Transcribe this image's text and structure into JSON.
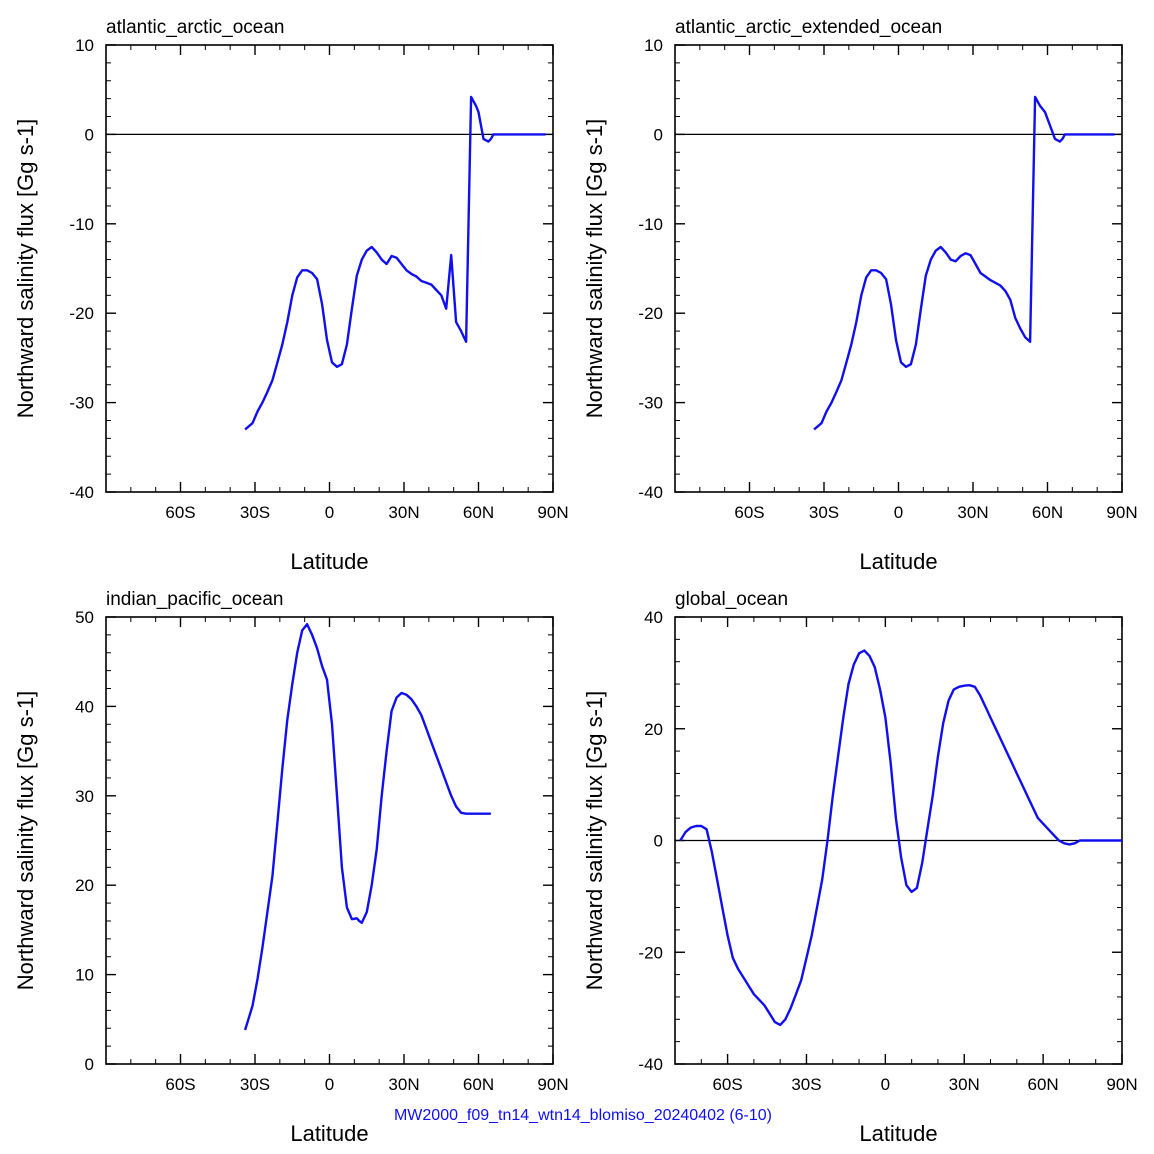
{
  "footer": "MW2000_f09_tn14_wtn14_blomiso_20240402 (6-10)",
  "colors": {
    "series": "#1010ee",
    "axes": "#000000"
  },
  "chart_data": [
    {
      "type": "line",
      "title": "atlantic_arctic_ocean",
      "xlabel": "Latitude",
      "ylabel": "Northward salinity flux [Gg s-1]",
      "xlim": [
        -90,
        90
      ],
      "ylim": [
        -40,
        10
      ],
      "x_ticks": [
        {
          "v": -60,
          "label": "60S"
        },
        {
          "v": -30,
          "label": "30S"
        },
        {
          "v": 0,
          "label": "0"
        },
        {
          "v": 30,
          "label": "30N"
        },
        {
          "v": 60,
          "label": "60N"
        },
        {
          "v": 90,
          "label": "90N"
        }
      ],
      "y_ticks": [
        {
          "v": 10,
          "label": "10"
        },
        {
          "v": 0,
          "label": "0"
        },
        {
          "v": -10,
          "label": "-10"
        },
        {
          "v": -20,
          "label": "-20"
        },
        {
          "v": -30,
          "label": "-30"
        },
        {
          "v": -40,
          "label": "-40"
        }
      ],
      "zero_line": true,
      "series": [
        {
          "x": [
            -34,
            -31,
            -29,
            -27,
            -25,
            -23,
            -21,
            -19,
            -17,
            -15,
            -13,
            -11,
            -9,
            -7,
            -5,
            -3,
            -1,
            1,
            3,
            5,
            7,
            9,
            11,
            13,
            15,
            17,
            19,
            21,
            23,
            25,
            27,
            29,
            31,
            33,
            35,
            37,
            39,
            41,
            43,
            45,
            47,
            49,
            51,
            53,
            55,
            57,
            59,
            60,
            61,
            62,
            64,
            65,
            66,
            67,
            69,
            71,
            73,
            75,
            77,
            79,
            81,
            83,
            85,
            87
          ],
          "y": [
            -33,
            -32.3,
            -31,
            -30,
            -28.8,
            -27.5,
            -25.5,
            -23.5,
            -21,
            -18,
            -16,
            -15.2,
            -15.2,
            -15.5,
            -16.2,
            -19,
            -23,
            -25.5,
            -26,
            -25.7,
            -23.5,
            -19.5,
            -15.8,
            -14,
            -13,
            -12.6,
            -13.2,
            -14,
            -14.5,
            -13.6,
            -13.8,
            -14.5,
            -15.2,
            -15.6,
            -15.9,
            -16.4,
            -16.6,
            -16.8,
            -17.4,
            -18,
            -19.5,
            -13.5,
            -21,
            -22,
            -23.2,
            4.2,
            3.2,
            2.5,
            1,
            -0.5,
            -0.8,
            -0.5,
            0,
            0,
            0,
            0,
            0,
            0,
            0,
            0,
            0,
            0,
            0,
            0
          ]
        }
      ]
    },
    {
      "type": "line",
      "title": "atlantic_arctic_extended_ocean",
      "xlabel": "Latitude",
      "ylabel": "Northward salinity flux [Gg s-1]",
      "xlim": [
        -90,
        90
      ],
      "ylim": [
        -40,
        10
      ],
      "x_ticks": [
        {
          "v": -60,
          "label": "60S"
        },
        {
          "v": -30,
          "label": "30S"
        },
        {
          "v": 0,
          "label": "0"
        },
        {
          "v": 30,
          "label": "30N"
        },
        {
          "v": 60,
          "label": "60N"
        },
        {
          "v": 90,
          "label": "90N"
        }
      ],
      "y_ticks": [
        {
          "v": 10,
          "label": "10"
        },
        {
          "v": 0,
          "label": "0"
        },
        {
          "v": -10,
          "label": "-10"
        },
        {
          "v": -20,
          "label": "-20"
        },
        {
          "v": -30,
          "label": "-30"
        },
        {
          "v": -40,
          "label": "-40"
        }
      ],
      "zero_line": true,
      "series": [
        {
          "x": [
            -34,
            -31,
            -29,
            -27,
            -25,
            -23,
            -21,
            -19,
            -17,
            -15,
            -13,
            -11,
            -9,
            -7,
            -5,
            -3,
            -1,
            1,
            3,
            5,
            7,
            9,
            11,
            13,
            15,
            17,
            19,
            21,
            23,
            25,
            27,
            29,
            31,
            33,
            35,
            37,
            39,
            41,
            43,
            45,
            47,
            49,
            51,
            53,
            55,
            57,
            59,
            61,
            63,
            65,
            66,
            67,
            69,
            71,
            73,
            75,
            77,
            79,
            81,
            83,
            85,
            87
          ],
          "y": [
            -33,
            -32.3,
            -31,
            -30,
            -28.8,
            -27.5,
            -25.5,
            -23.5,
            -21,
            -18,
            -16,
            -15.2,
            -15.2,
            -15.5,
            -16.2,
            -19,
            -23,
            -25.5,
            -26,
            -25.7,
            -23.5,
            -19.5,
            -15.8,
            -14,
            -13,
            -12.6,
            -13.2,
            -14,
            -14.2,
            -13.6,
            -13.3,
            -13.5,
            -14.5,
            -15.5,
            -15.9,
            -16.3,
            -16.6,
            -16.9,
            -17.5,
            -18.5,
            -20.5,
            -21.7,
            -22.7,
            -23.2,
            4.2,
            3.2,
            2.5,
            1,
            -0.5,
            -0.8,
            -0.5,
            0,
            0,
            0,
            0,
            0,
            0,
            0,
            0,
            0,
            0,
            0
          ]
        }
      ]
    },
    {
      "type": "line",
      "title": "indian_pacific_ocean",
      "xlabel": "Latitude",
      "ylabel": "Northward salinity flux [Gg s-1]",
      "xlim": [
        -90,
        90
      ],
      "ylim": [
        0,
        50
      ],
      "x_ticks": [
        {
          "v": -60,
          "label": "60S"
        },
        {
          "v": -30,
          "label": "30S"
        },
        {
          "v": 0,
          "label": "0"
        },
        {
          "v": 30,
          "label": "30N"
        },
        {
          "v": 60,
          "label": "60N"
        },
        {
          "v": 90,
          "label": "90N"
        }
      ],
      "y_ticks": [
        {
          "v": 50,
          "label": "50"
        },
        {
          "v": 40,
          "label": "40"
        },
        {
          "v": 30,
          "label": "30"
        },
        {
          "v": 20,
          "label": "20"
        },
        {
          "v": 10,
          "label": "10"
        },
        {
          "v": 0,
          "label": "0"
        }
      ],
      "zero_line": false,
      "series": [
        {
          "x": [
            -34,
            -31,
            -29,
            -27,
            -25,
            -23,
            -21,
            -19,
            -17,
            -15,
            -13,
            -11,
            -9,
            -7,
            -5,
            -3,
            -1,
            1,
            3,
            5,
            7,
            9,
            11,
            12,
            13,
            15,
            17,
            19,
            21,
            23,
            25,
            27,
            29,
            31,
            33,
            35,
            37,
            39,
            41,
            43,
            45,
            47,
            49,
            51,
            53,
            55,
            57,
            59,
            61,
            63,
            65
          ],
          "y": [
            3.8,
            6.5,
            9.5,
            13,
            17,
            21,
            27,
            33,
            38.5,
            42.5,
            46,
            48.5,
            49.2,
            48,
            46.5,
            44.5,
            43,
            38,
            30,
            22,
            17.5,
            16.2,
            16.3,
            16,
            15.8,
            17,
            20,
            24,
            30,
            35,
            39.5,
            41,
            41.5,
            41.3,
            40.8,
            40,
            39,
            37.5,
            36,
            34.5,
            33,
            31.5,
            30,
            28.8,
            28.1,
            28,
            28,
            28,
            28,
            28,
            28
          ]
        }
      ]
    },
    {
      "type": "line",
      "title": "global_ocean",
      "xlabel": "Latitude",
      "ylabel": "Northward salinity flux [Gg s-1]",
      "xlim": [
        -80,
        90
      ],
      "ylim": [
        -40,
        40
      ],
      "x_ticks": [
        {
          "v": -60,
          "label": "60S"
        },
        {
          "v": -30,
          "label": "30S"
        },
        {
          "v": 0,
          "label": "0"
        },
        {
          "v": 30,
          "label": "30N"
        },
        {
          "v": 60,
          "label": "60N"
        },
        {
          "v": 90,
          "label": "90N"
        }
      ],
      "y_ticks": [
        {
          "v": 40,
          "label": "40"
        },
        {
          "v": 20,
          "label": "20"
        },
        {
          "v": 0,
          "label": "0"
        },
        {
          "v": -20,
          "label": "-20"
        },
        {
          "v": -40,
          "label": "-40"
        }
      ],
      "zero_line": true,
      "series": [
        {
          "x": [
            -78,
            -76,
            -74,
            -72,
            -70,
            -68,
            -66,
            -64,
            -62,
            -60,
            -58,
            -56,
            -54,
            -52,
            -50,
            -48,
            -46,
            -44,
            -42,
            -40,
            -38,
            -36,
            -34,
            -32,
            -30,
            -28,
            -26,
            -24,
            -22,
            -20,
            -18,
            -16,
            -14,
            -12,
            -10,
            -8,
            -6,
            -4,
            -2,
            0,
            2,
            4,
            6,
            8,
            10,
            12,
            14,
            16,
            18,
            20,
            22,
            24,
            26,
            28,
            30,
            32,
            34,
            36,
            38,
            40,
            42,
            44,
            46,
            48,
            50,
            52,
            54,
            56,
            58,
            60,
            62,
            64,
            66,
            68,
            70,
            72,
            74,
            76,
            78,
            80,
            82,
            84,
            86,
            88,
            90
          ],
          "y": [
            0,
            1.5,
            2.3,
            2.6,
            2.6,
            2,
            -2,
            -7,
            -12,
            -17,
            -21,
            -23,
            -24.5,
            -26,
            -27.5,
            -28.5,
            -29.5,
            -31,
            -32.5,
            -33,
            -32,
            -30,
            -27.5,
            -25,
            -21,
            -17,
            -12,
            -7,
            0,
            8,
            15,
            22,
            28,
            31.5,
            33.5,
            34,
            33,
            31,
            27,
            22,
            14,
            4,
            -3,
            -8,
            -9.2,
            -8.5,
            -4,
            2,
            8,
            15,
            21,
            25,
            27,
            27.5,
            27.7,
            27.8,
            27.5,
            26,
            24,
            22,
            20,
            18,
            16,
            14,
            12,
            10,
            8,
            6,
            4,
            3,
            2,
            1,
            0,
            -0.5,
            -0.7,
            -0.5,
            0,
            0,
            0,
            0,
            0,
            0,
            0,
            0,
            0
          ]
        }
      ]
    }
  ]
}
